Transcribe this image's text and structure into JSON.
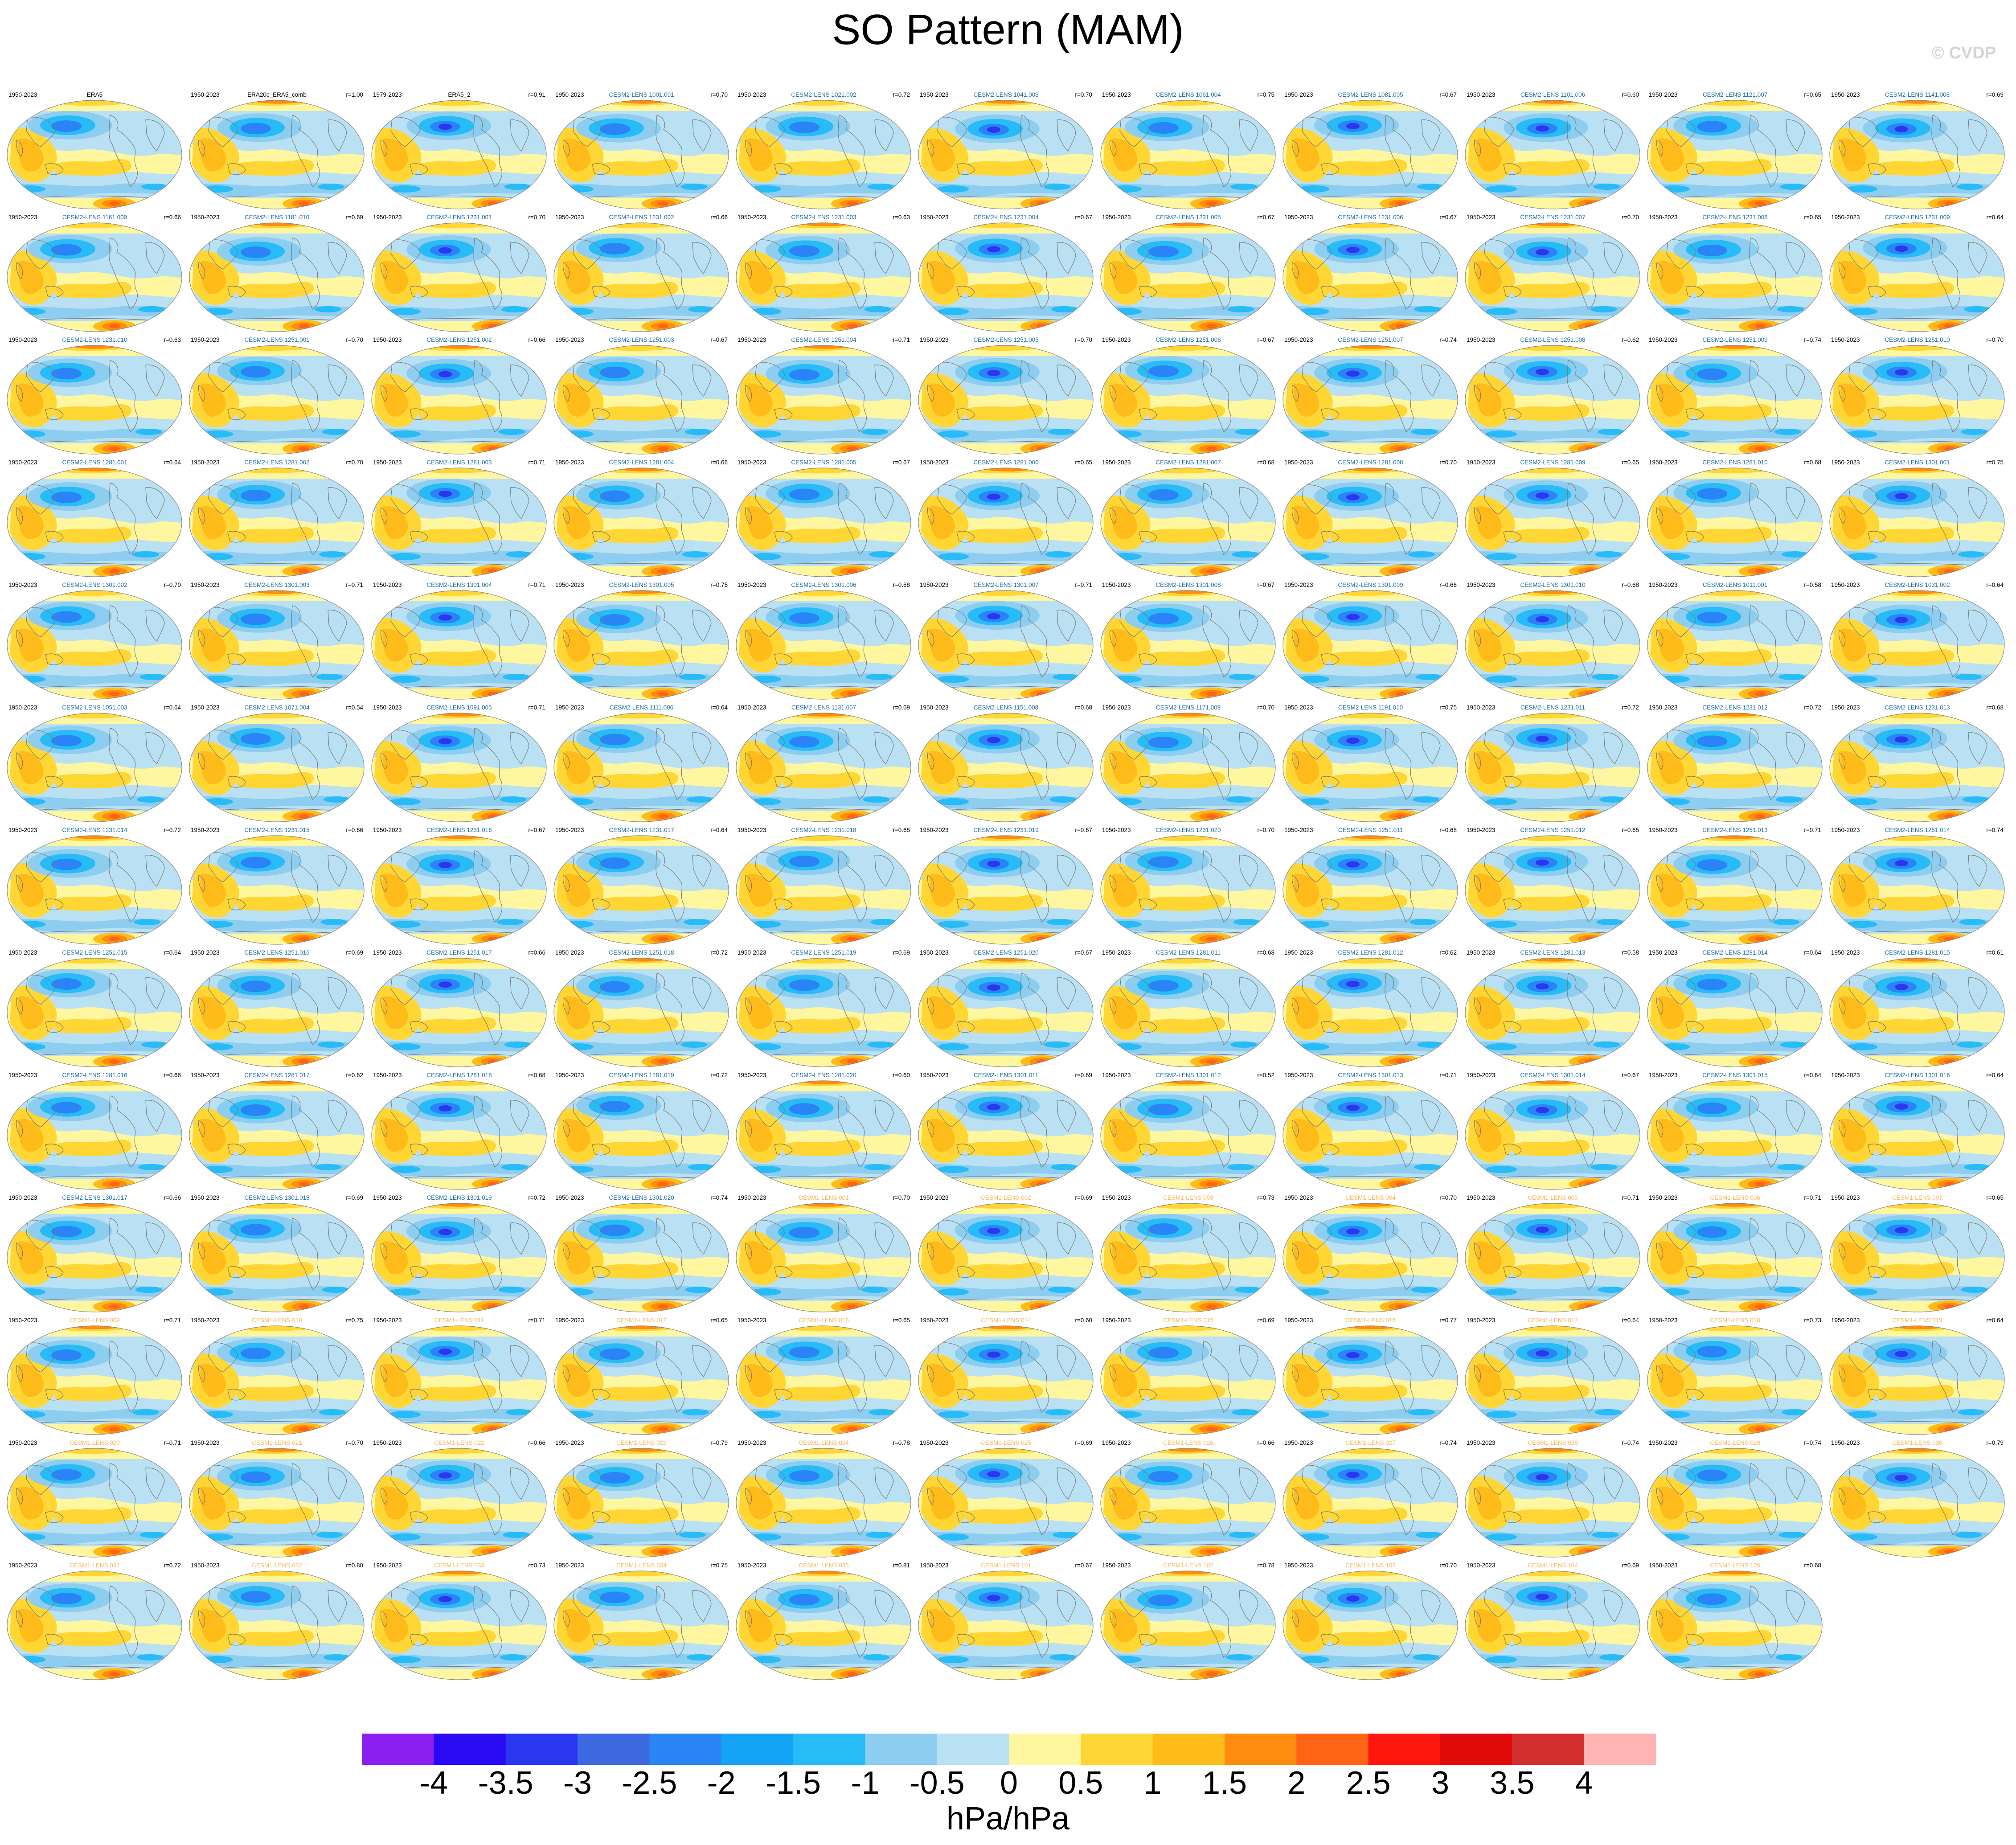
{
  "title": "SO Pattern (MAM)",
  "watermark": "© CVDP",
  "colorbar": {
    "units": "hPa/hPa",
    "ticks": [
      "-4",
      "-3.5",
      "-3",
      "-2.5",
      "-2",
      "-1.5",
      "-1",
      "-0.5",
      "0",
      "0.5",
      "1",
      "1.5",
      "2",
      "2.5",
      "3",
      "3.5",
      "4"
    ],
    "colors": [
      "#8a1ff0",
      "#2a0af5",
      "#2b36f0",
      "#3c69e0",
      "#2b84f5",
      "#15a3f5",
      "#27bbf7",
      "#8ccdf0",
      "#b9e1f3",
      "#fff6a0",
      "#ffd633",
      "#ffbb1a",
      "#ff8c0d",
      "#ff6414",
      "#ff170f",
      "#e20b0b",
      "#d22e2e",
      "#ffb4b4"
    ]
  },
  "label_colors": {
    "obs": "#000000",
    "cesm2": "#1f6fa8",
    "cesm1": "#f5b95c"
  },
  "panels": [
    {
      "name": "ERA5",
      "years": "1950-2023",
      "r": "",
      "group": "obs"
    },
    {
      "name": "ERA20c_ERA5_comb",
      "years": "1950-2023",
      "r": "r=1.00",
      "group": "obs"
    },
    {
      "name": "ERA5_2",
      "years": "1979-2023",
      "r": "r=0.91",
      "group": "obs"
    },
    {
      "name": "CESM2-LENS 1001.001",
      "years": "1950-2023",
      "r": "r=0.70",
      "group": "cesm2"
    },
    {
      "name": "CESM2-LENS 1021.002",
      "years": "1950-2023",
      "r": "r=0.72",
      "group": "cesm2"
    },
    {
      "name": "CESM2-LENS 1041.003",
      "years": "1950-2023",
      "r": "r=0.70",
      "group": "cesm2"
    },
    {
      "name": "CESM2-LENS 1061.004",
      "years": "1950-2023",
      "r": "r=0.75",
      "group": "cesm2"
    },
    {
      "name": "CESM2-LENS 1081.005",
      "years": "1950-2023",
      "r": "r=0.67",
      "group": "cesm2"
    },
    {
      "name": "CESM2-LENS 1101.006",
      "years": "1950-2023",
      "r": "r=0.60",
      "group": "cesm2"
    },
    {
      "name": "CESM2-LENS 1121.007",
      "years": "1950-2023",
      "r": "r=0.65",
      "group": "cesm2"
    },
    {
      "name": "CESM2-LENS 1141.008",
      "years": "1950-2023",
      "r": "r=0.69",
      "group": "cesm2"
    },
    {
      "name": "CESM2-LENS 1161.009",
      "years": "1950-2023",
      "r": "r=0.66",
      "group": "cesm2"
    },
    {
      "name": "CESM2-LENS 1181.010",
      "years": "1950-2023",
      "r": "r=0.69",
      "group": "cesm2"
    },
    {
      "name": "CESM2-LENS 1231.001",
      "years": "1950-2023",
      "r": "r=0.70",
      "group": "cesm2"
    },
    {
      "name": "CESM2-LENS 1231.002",
      "years": "1950-2023",
      "r": "r=0.66",
      "group": "cesm2"
    },
    {
      "name": "CESM2-LENS 1231.003",
      "years": "1950-2023",
      "r": "r=0.63",
      "group": "cesm2"
    },
    {
      "name": "CESM2-LENS 1231.004",
      "years": "1950-2023",
      "r": "r=0.67",
      "group": "cesm2"
    },
    {
      "name": "CESM2-LENS 1231.005",
      "years": "1950-2023",
      "r": "r=0.67",
      "group": "cesm2"
    },
    {
      "name": "CESM2-LENS 1231.006",
      "years": "1950-2023",
      "r": "r=0.67",
      "group": "cesm2"
    },
    {
      "name": "CESM2-LENS 1231.007",
      "years": "1950-2023",
      "r": "r=0.70",
      "group": "cesm2"
    },
    {
      "name": "CESM2-LENS 1231.008",
      "years": "1950-2023",
      "r": "r=0.65",
      "group": "cesm2"
    },
    {
      "name": "CESM2-LENS 1231.009",
      "years": "1950-2023",
      "r": "r=0.64",
      "group": "cesm2"
    },
    {
      "name": "CESM2-LENS 1231.010",
      "years": "1950-2023",
      "r": "r=0.63",
      "group": "cesm2"
    },
    {
      "name": "CESM2-LENS 1251.001",
      "years": "1950-2023",
      "r": "r=0.70",
      "group": "cesm2"
    },
    {
      "name": "CESM2-LENS 1251.002",
      "years": "1950-2023",
      "r": "r=0.66",
      "group": "cesm2"
    },
    {
      "name": "CESM2-LENS 1251.003",
      "years": "1950-2023",
      "r": "r=0.67",
      "group": "cesm2"
    },
    {
      "name": "CESM2-LENS 1251.004",
      "years": "1950-2023",
      "r": "r=0.71",
      "group": "cesm2"
    },
    {
      "name": "CESM2-LENS 1251.005",
      "years": "1950-2023",
      "r": "r=0.70",
      "group": "cesm2"
    },
    {
      "name": "CESM2-LENS 1251.006",
      "years": "1950-2023",
      "r": "r=0.67",
      "group": "cesm2"
    },
    {
      "name": "CESM2-LENS 1251.007",
      "years": "1950-2023",
      "r": "r=0.74",
      "group": "cesm2"
    },
    {
      "name": "CESM2-LENS 1251.008",
      "years": "1950-2023",
      "r": "r=0.62",
      "group": "cesm2"
    },
    {
      "name": "CESM2-LENS 1251.009",
      "years": "1950-2023",
      "r": "r=0.74",
      "group": "cesm2"
    },
    {
      "name": "CESM2-LENS 1251.010",
      "years": "1950-2023",
      "r": "r=0.70",
      "group": "cesm2"
    },
    {
      "name": "CESM2-LENS 1281.001",
      "years": "1950-2023",
      "r": "r=0.64",
      "group": "cesm2"
    },
    {
      "name": "CESM2-LENS 1281.002",
      "years": "1950-2023",
      "r": "r=0.70",
      "group": "cesm2"
    },
    {
      "name": "CESM2-LENS 1281.003",
      "years": "1950-2023",
      "r": "r=0.71",
      "group": "cesm2"
    },
    {
      "name": "CESM2-LENS 1281.004",
      "years": "1950-2023",
      "r": "r=0.66",
      "group": "cesm2"
    },
    {
      "name": "CESM2-LENS 1281.005",
      "years": "1950-2023",
      "r": "r=0.67",
      "group": "cesm2"
    },
    {
      "name": "CESM2-LENS 1281.006",
      "years": "1950-2023",
      "r": "r=0.65",
      "group": "cesm2"
    },
    {
      "name": "CESM2-LENS 1281.007",
      "years": "1950-2023",
      "r": "r=0.68",
      "group": "cesm2"
    },
    {
      "name": "CESM2-LENS 1281.008",
      "years": "1950-2023",
      "r": "r=0.70",
      "group": "cesm2"
    },
    {
      "name": "CESM2-LENS 1281.009",
      "years": "1950-2023",
      "r": "r=0.65",
      "group": "cesm2"
    },
    {
      "name": "CESM2-LENS 1281.010",
      "years": "1950-2023",
      "r": "r=0.68",
      "group": "cesm2"
    },
    {
      "name": "CESM2-LENS 1301.001",
      "years": "1950-2023",
      "r": "r=0.75",
      "group": "cesm2"
    },
    {
      "name": "CESM2-LENS 1301.002",
      "years": "1950-2023",
      "r": "r=0.70",
      "group": "cesm2"
    },
    {
      "name": "CESM2-LENS 1301.003",
      "years": "1950-2023",
      "r": "r=0.71",
      "group": "cesm2"
    },
    {
      "name": "CESM2-LENS 1301.004",
      "years": "1950-2023",
      "r": "r=0.71",
      "group": "cesm2"
    },
    {
      "name": "CESM2-LENS 1301.005",
      "years": "1950-2023",
      "r": "r=0.75",
      "group": "cesm2"
    },
    {
      "name": "CESM2-LENS 1301.006",
      "years": "1950-2023",
      "r": "r=0.58",
      "group": "cesm2"
    },
    {
      "name": "CESM2-LENS 1301.007",
      "years": "1950-2023",
      "r": "r=0.71",
      "group": "cesm2"
    },
    {
      "name": "CESM2-LENS 1301.008",
      "years": "1950-2023",
      "r": "r=0.67",
      "group": "cesm2"
    },
    {
      "name": "CESM2-LENS 1301.009",
      "years": "1950-2023",
      "r": "r=0.66",
      "group": "cesm2"
    },
    {
      "name": "CESM2-LENS 1301.010",
      "years": "1950-2023",
      "r": "r=0.68",
      "group": "cesm2"
    },
    {
      "name": "CESM2-LENS 1011.001",
      "years": "1950-2023",
      "r": "r=0.58",
      "group": "cesm2"
    },
    {
      "name": "CESM2-LENS 1031.002",
      "years": "1950-2023",
      "r": "r=0.64",
      "group": "cesm2"
    },
    {
      "name": "CESM2-LENS 1051.003",
      "years": "1950-2023",
      "r": "r=0.64",
      "group": "cesm2"
    },
    {
      "name": "CESM2-LENS 1071.004",
      "years": "1950-2023",
      "r": "r=0.54",
      "group": "cesm2"
    },
    {
      "name": "CESM2-LENS 1091.005",
      "years": "1950-2023",
      "r": "r=0.71",
      "group": "cesm2"
    },
    {
      "name": "CESM2-LENS 1111.006",
      "years": "1950-2023",
      "r": "r=0.64",
      "group": "cesm2"
    },
    {
      "name": "CESM2-LENS 1131.007",
      "years": "1950-2023",
      "r": "r=0.69",
      "group": "cesm2"
    },
    {
      "name": "CESM2-LENS 1151.008",
      "years": "1950-2023",
      "r": "r=0.68",
      "group": "cesm2"
    },
    {
      "name": "CESM2-LENS 1171.009",
      "years": "1950-2023",
      "r": "r=0.70",
      "group": "cesm2"
    },
    {
      "name": "CESM2-LENS 1191.010",
      "years": "1950-2023",
      "r": "r=0.75",
      "group": "cesm2"
    },
    {
      "name": "CESM2-LENS 1231.011",
      "years": "1950-2023",
      "r": "r=0.72",
      "group": "cesm2"
    },
    {
      "name": "CESM2-LENS 1231.012",
      "years": "1950-2023",
      "r": "r=0.72",
      "group": "cesm2"
    },
    {
      "name": "CESM2-LENS 1231.013",
      "years": "1950-2023",
      "r": "r=0.68",
      "group": "cesm2"
    },
    {
      "name": "CESM2-LENS 1231.014",
      "years": "1950-2023",
      "r": "r=0.72",
      "group": "cesm2"
    },
    {
      "name": "CESM2-LENS 1231.015",
      "years": "1950-2023",
      "r": "r=0.66",
      "group": "cesm2"
    },
    {
      "name": "CESM2-LENS 1231.016",
      "years": "1950-2023",
      "r": "r=0.67",
      "group": "cesm2"
    },
    {
      "name": "CESM2-LENS 1231.017",
      "years": "1950-2023",
      "r": "r=0.64",
      "group": "cesm2"
    },
    {
      "name": "CESM2-LENS 1231.018",
      "years": "1950-2023",
      "r": "r=0.65",
      "group": "cesm2"
    },
    {
      "name": "CESM2-LENS 1231.019",
      "years": "1950-2023",
      "r": "r=0.67",
      "group": "cesm2"
    },
    {
      "name": "CESM2-LENS 1231.020",
      "years": "1950-2023",
      "r": "r=0.70",
      "group": "cesm2"
    },
    {
      "name": "CESM2-LENS 1251.011",
      "years": "1950-2023",
      "r": "r=0.68",
      "group": "cesm2"
    },
    {
      "name": "CESM2-LENS 1251.012",
      "years": "1950-2023",
      "r": "r=0.65",
      "group": "cesm2"
    },
    {
      "name": "CESM2-LENS 1251.013",
      "years": "1950-2023",
      "r": "r=0.71",
      "group": "cesm2"
    },
    {
      "name": "CESM2-LENS 1251.014",
      "years": "1950-2023",
      "r": "r=0.74",
      "group": "cesm2"
    },
    {
      "name": "CESM2-LENS 1251.015",
      "years": "1950-2023",
      "r": "r=0.64",
      "group": "cesm2"
    },
    {
      "name": "CESM2-LENS 1251.016",
      "years": "1950-2023",
      "r": "r=0.69",
      "group": "cesm2"
    },
    {
      "name": "CESM2-LENS 1251.017",
      "years": "1950-2023",
      "r": "r=0.66",
      "group": "cesm2"
    },
    {
      "name": "CESM2-LENS 1251.018",
      "years": "1950-2023",
      "r": "r=0.72",
      "group": "cesm2"
    },
    {
      "name": "CESM2-LENS 1251.019",
      "years": "1950-2023",
      "r": "r=0.69",
      "group": "cesm2"
    },
    {
      "name": "CESM2-LENS 1251.020",
      "years": "1950-2023",
      "r": "r=0.67",
      "group": "cesm2"
    },
    {
      "name": "CESM2-LENS 1281.011",
      "years": "1950-2023",
      "r": "r=0.68",
      "group": "cesm2"
    },
    {
      "name": "CESM2-LENS 1281.012",
      "years": "1950-2023",
      "r": "r=0.62",
      "group": "cesm2"
    },
    {
      "name": "CESM2-LENS 1281.013",
      "years": "1950-2023",
      "r": "r=0.58",
      "group": "cesm2"
    },
    {
      "name": "CESM2-LENS 1281.014",
      "years": "1950-2023",
      "r": "r=0.64",
      "group": "cesm2"
    },
    {
      "name": "CESM2-LENS 1281.015",
      "years": "1950-2023",
      "r": "r=0.61",
      "group": "cesm2"
    },
    {
      "name": "CESM2-LENS 1281.016",
      "years": "1950-2023",
      "r": "r=0.66",
      "group": "cesm2"
    },
    {
      "name": "CESM2-LENS 1281.017",
      "years": "1950-2023",
      "r": "r=0.62",
      "group": "cesm2"
    },
    {
      "name": "CESM2-LENS 1281.018",
      "years": "1950-2023",
      "r": "r=0.68",
      "group": "cesm2"
    },
    {
      "name": "CESM2-LENS 1281.019",
      "years": "1950-2023",
      "r": "r=0.72",
      "group": "cesm2"
    },
    {
      "name": "CESM2-LENS 1281.020",
      "years": "1950-2023",
      "r": "r=0.60",
      "group": "cesm2"
    },
    {
      "name": "CESM2-LENS 1301.011",
      "years": "1950-2023",
      "r": "r=0.69",
      "group": "cesm2"
    },
    {
      "name": "CESM2-LENS 1301.012",
      "years": "1950-2023",
      "r": "r=0.52",
      "group": "cesm2"
    },
    {
      "name": "CESM2-LENS 1301.013",
      "years": "1950-2023",
      "r": "r=0.71",
      "group": "cesm2"
    },
    {
      "name": "CESM2-LENS 1301.014",
      "years": "1950-2023",
      "r": "r=0.67",
      "group": "cesm2"
    },
    {
      "name": "CESM2-LENS 1301.015",
      "years": "1950-2023",
      "r": "r=0.64",
      "group": "cesm2"
    },
    {
      "name": "CESM2-LENS 1301.016",
      "years": "1950-2023",
      "r": "r=0.64",
      "group": "cesm2"
    },
    {
      "name": "CESM2-LENS 1301.017",
      "years": "1950-2023",
      "r": "r=0.66",
      "group": "cesm2"
    },
    {
      "name": "CESM2-LENS 1301.018",
      "years": "1950-2023",
      "r": "r=0.69",
      "group": "cesm2"
    },
    {
      "name": "CESM2-LENS 1301.019",
      "years": "1950-2023",
      "r": "r=0.72",
      "group": "cesm2"
    },
    {
      "name": "CESM2-LENS 1301.020",
      "years": "1950-2023",
      "r": "r=0.74",
      "group": "cesm2"
    },
    {
      "name": "CESM1-LENS 001",
      "years": "1950-2023",
      "r": "r=0.70",
      "group": "cesm1"
    },
    {
      "name": "CESM1-LENS 002",
      "years": "1950-2023",
      "r": "r=0.69",
      "group": "cesm1"
    },
    {
      "name": "CESM1-LENS 003",
      "years": "1950-2023",
      "r": "r=0.73",
      "group": "cesm1"
    },
    {
      "name": "CESM1-LENS 004",
      "years": "1950-2023",
      "r": "r=0.70",
      "group": "cesm1"
    },
    {
      "name": "CESM1-LENS 005",
      "years": "1950-2023",
      "r": "r=0.71",
      "group": "cesm1"
    },
    {
      "name": "CESM1-LENS 006",
      "years": "1950-2023",
      "r": "r=0.71",
      "group": "cesm1"
    },
    {
      "name": "CESM1-LENS 007",
      "years": "1950-2023",
      "r": "r=0.65",
      "group": "cesm1"
    },
    {
      "name": "CESM1-LENS 009",
      "years": "1950-2023",
      "r": "r=0.71",
      "group": "cesm1"
    },
    {
      "name": "CESM1-LENS 010",
      "years": "1950-2023",
      "r": "r=0.75",
      "group": "cesm1"
    },
    {
      "name": "CESM1-LENS 011",
      "years": "1950-2023",
      "r": "r=0.71",
      "group": "cesm1"
    },
    {
      "name": "CESM1-LENS 012",
      "years": "1950-2023",
      "r": "r=0.65",
      "group": "cesm1"
    },
    {
      "name": "CESM1-LENS 013",
      "years": "1950-2023",
      "r": "r=0.65",
      "group": "cesm1"
    },
    {
      "name": "CESM1-LENS 014",
      "years": "1950-2023",
      "r": "r=0.60",
      "group": "cesm1"
    },
    {
      "name": "CESM1-LENS 015",
      "years": "1950-2023",
      "r": "r=0.69",
      "group": "cesm1"
    },
    {
      "name": "CESM1-LENS 016",
      "years": "1950-2023",
      "r": "r=0.77",
      "group": "cesm1"
    },
    {
      "name": "CESM1-LENS 017",
      "years": "1950-2023",
      "r": "r=0.64",
      "group": "cesm1"
    },
    {
      "name": "CESM1-LENS 018",
      "years": "1950-2023",
      "r": "r=0.73",
      "group": "cesm1"
    },
    {
      "name": "CESM1-LENS 019",
      "years": "1950-2023",
      "r": "r=0.64",
      "group": "cesm1"
    },
    {
      "name": "CESM1-LENS 020",
      "years": "1950-2023",
      "r": "r=0.71",
      "group": "cesm1"
    },
    {
      "name": "CESM1-LENS 021",
      "years": "1950-2023",
      "r": "r=0.70",
      "group": "cesm1"
    },
    {
      "name": "CESM1-LENS 022",
      "years": "1950-2023",
      "r": "r=0.66",
      "group": "cesm1"
    },
    {
      "name": "CESM1-LENS 023",
      "years": "1950-2023",
      "r": "r=0.79",
      "group": "cesm1"
    },
    {
      "name": "CESM1-LENS 024",
      "years": "1950-2023",
      "r": "r=0.78",
      "group": "cesm1"
    },
    {
      "name": "CESM1-LENS 025",
      "years": "1950-2023",
      "r": "r=0.69",
      "group": "cesm1"
    },
    {
      "name": "CESM1-LENS 026",
      "years": "1950-2023",
      "r": "r=0.66",
      "group": "cesm1"
    },
    {
      "name": "CESM1-LENS 027",
      "years": "1950-2023",
      "r": "r=0.74",
      "group": "cesm1"
    },
    {
      "name": "CESM1-LENS 028",
      "years": "1950-2023",
      "r": "r=0.74",
      "group": "cesm1"
    },
    {
      "name": "CESM1-LENS 029",
      "years": "1950-2023",
      "r": "r=0.74",
      "group": "cesm1"
    },
    {
      "name": "CESM1-LENS 030",
      "years": "1950-2023",
      "r": "r=0.79",
      "group": "cesm1"
    },
    {
      "name": "CESM1-LENS 031",
      "years": "1950-2023",
      "r": "r=0.72",
      "group": "cesm1"
    },
    {
      "name": "CESM1-LENS 032",
      "years": "1950-2023",
      "r": "r=0.80",
      "group": "cesm1"
    },
    {
      "name": "CESM1-LENS 033",
      "years": "1950-2023",
      "r": "r=0.73",
      "group": "cesm1"
    },
    {
      "name": "CESM1-LENS 034",
      "years": "1950-2023",
      "r": "r=0.75",
      "group": "cesm1"
    },
    {
      "name": "CESM1-LENS 035",
      "years": "1950-2023",
      "r": "r=0.81",
      "group": "cesm1"
    },
    {
      "name": "CESM1-LENS 101",
      "years": "1950-2023",
      "r": "r=0.67",
      "group": "cesm1"
    },
    {
      "name": "CESM1-LENS 102",
      "years": "1950-2023",
      "r": "r=0.78",
      "group": "cesm1"
    },
    {
      "name": "CESM1-LENS 103",
      "years": "1950-2023",
      "r": "r=0.70",
      "group": "cesm1"
    },
    {
      "name": "CESM1-LENS 104",
      "years": "1950-2023",
      "r": "r=0.69",
      "group": "cesm1"
    },
    {
      "name": "CESM1-LENS 105",
      "years": "1950-2023",
      "r": "r=0.68",
      "group": "cesm1"
    }
  ]
}
